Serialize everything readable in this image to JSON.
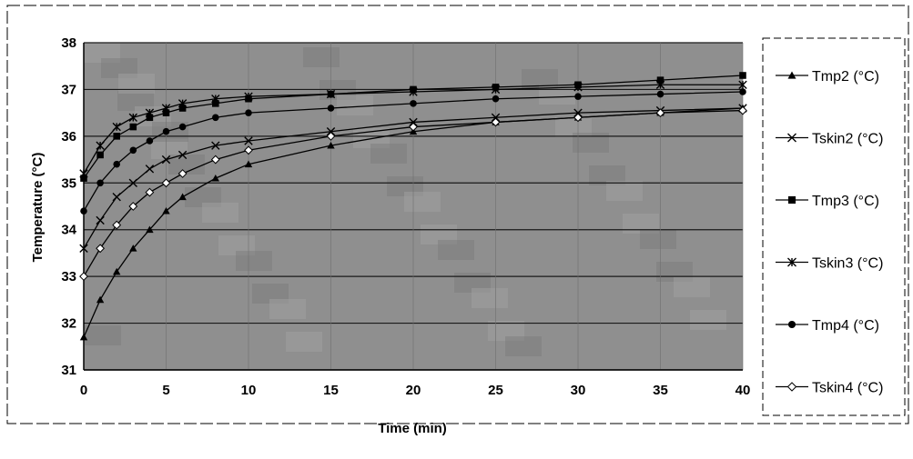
{
  "chart_data": {
    "type": "line",
    "title": "",
    "xlabel": "Time (min)",
    "ylabel": "Temperature (°C)",
    "xlim": [
      0,
      40
    ],
    "ylim": [
      31,
      38
    ],
    "x_ticks": [
      "0",
      "5",
      "10",
      "15",
      "20",
      "25",
      "30",
      "35",
      "40"
    ],
    "y_ticks": [
      "31",
      "32",
      "33",
      "34",
      "35",
      "36",
      "37",
      "38"
    ],
    "grid": true,
    "legend_position": "right",
    "plot_background": "#8f8f8f",
    "series": [
      {
        "name": "Tmp2 (°C)",
        "marker": "triangle",
        "x": [
          0,
          1,
          2,
          3,
          4,
          5,
          6,
          8,
          10,
          15,
          20,
          25,
          30,
          35,
          40
        ],
        "y": [
          31.7,
          32.5,
          33.1,
          33.6,
          34.0,
          34.4,
          34.7,
          35.1,
          35.4,
          35.8,
          36.1,
          36.3,
          36.4,
          36.5,
          36.6
        ]
      },
      {
        "name": "Tskin2 (°C)",
        "marker": "x",
        "x": [
          0,
          1,
          2,
          3,
          4,
          5,
          6,
          8,
          10,
          15,
          20,
          25,
          30,
          35,
          40
        ],
        "y": [
          33.6,
          34.2,
          34.7,
          35.0,
          35.3,
          35.5,
          35.6,
          35.8,
          35.9,
          36.1,
          36.3,
          36.4,
          36.5,
          36.55,
          36.6
        ]
      },
      {
        "name": "Tmp3 (°C)",
        "marker": "square",
        "x": [
          0,
          1,
          2,
          3,
          4,
          5,
          6,
          8,
          10,
          15,
          20,
          25,
          30,
          35,
          40
        ],
        "y": [
          35.1,
          35.6,
          36.0,
          36.2,
          36.4,
          36.5,
          36.6,
          36.7,
          36.8,
          36.9,
          37.0,
          37.05,
          37.1,
          37.2,
          37.3
        ]
      },
      {
        "name": "Tskin3 (°C)",
        "marker": "star",
        "x": [
          0,
          1,
          2,
          3,
          4,
          5,
          6,
          8,
          10,
          15,
          20,
          25,
          30,
          35,
          40
        ],
        "y": [
          35.2,
          35.8,
          36.2,
          36.4,
          36.5,
          36.6,
          36.7,
          36.8,
          36.85,
          36.9,
          36.95,
          37.0,
          37.05,
          37.1,
          37.1
        ]
      },
      {
        "name": "Tmp4 (°C)",
        "marker": "circle",
        "x": [
          0,
          1,
          2,
          3,
          4,
          5,
          6,
          8,
          10,
          15,
          20,
          25,
          30,
          35,
          40
        ],
        "y": [
          34.4,
          35.0,
          35.4,
          35.7,
          35.9,
          36.1,
          36.2,
          36.4,
          36.5,
          36.6,
          36.7,
          36.8,
          36.85,
          36.9,
          36.95
        ]
      },
      {
        "name": "Tskin4 (°C)",
        "marker": "diamond",
        "x": [
          0,
          1,
          2,
          3,
          4,
          5,
          6,
          8,
          10,
          15,
          20,
          25,
          30,
          35,
          40
        ],
        "y": [
          33.0,
          33.6,
          34.1,
          34.5,
          34.8,
          35.0,
          35.2,
          35.5,
          35.7,
          36.0,
          36.2,
          36.3,
          36.4,
          36.5,
          36.55
        ]
      }
    ]
  }
}
